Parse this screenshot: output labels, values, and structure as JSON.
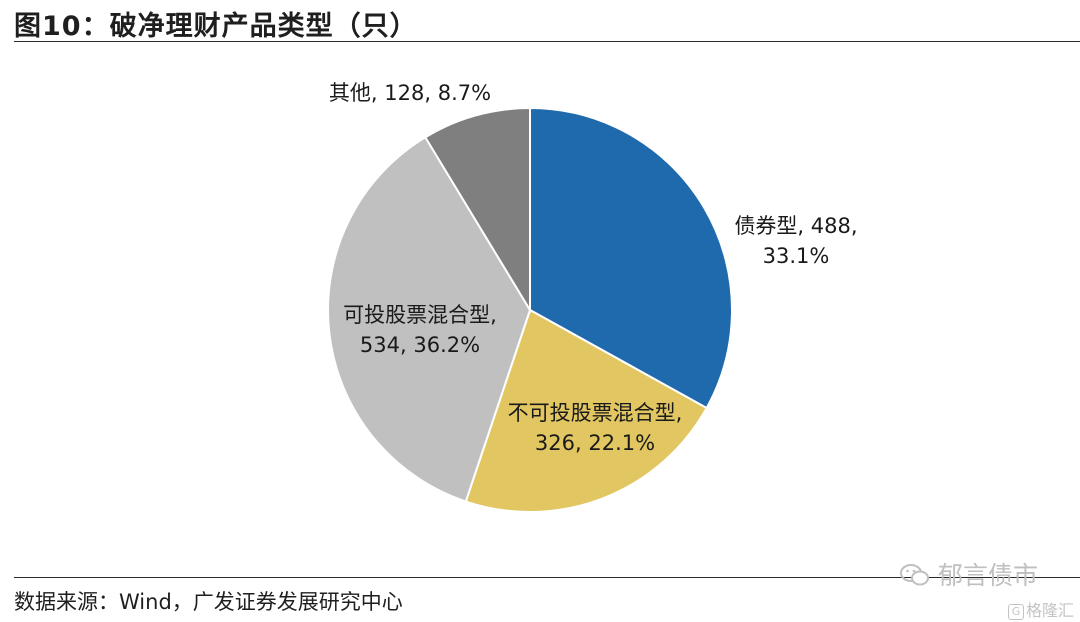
{
  "title": "图10：破净理财产品类型（只）",
  "source": "数据来源：Wind，广发证券发展研究中心",
  "watermarks": {
    "main": "郁言债市",
    "small": "格隆汇",
    "small_icon": "G"
  },
  "chart_data": {
    "type": "pie",
    "title": "",
    "slices": [
      {
        "name": "债券型",
        "value": 488,
        "pct": "33.1%",
        "color": "#1f6aad",
        "label_lines": [
          "债券型, 488,",
          "33.1%"
        ]
      },
      {
        "name": "不可投股票混合型",
        "value": 326,
        "pct": "22.1%",
        "color": "#e1c662",
        "label_lines": [
          "不可投股票混合型,",
          "326, 22.1%"
        ]
      },
      {
        "name": "可投股票混合型",
        "value": 534,
        "pct": "36.2%",
        "color": "#c0c0c0",
        "label_lines": [
          "可投股票混合型,",
          "534, 36.2%"
        ]
      },
      {
        "name": "其他",
        "value": 128,
        "pct": "8.7%",
        "color": "#7f7f7f",
        "label_lines": [
          "其他, 128, 8.7%"
        ]
      }
    ]
  }
}
